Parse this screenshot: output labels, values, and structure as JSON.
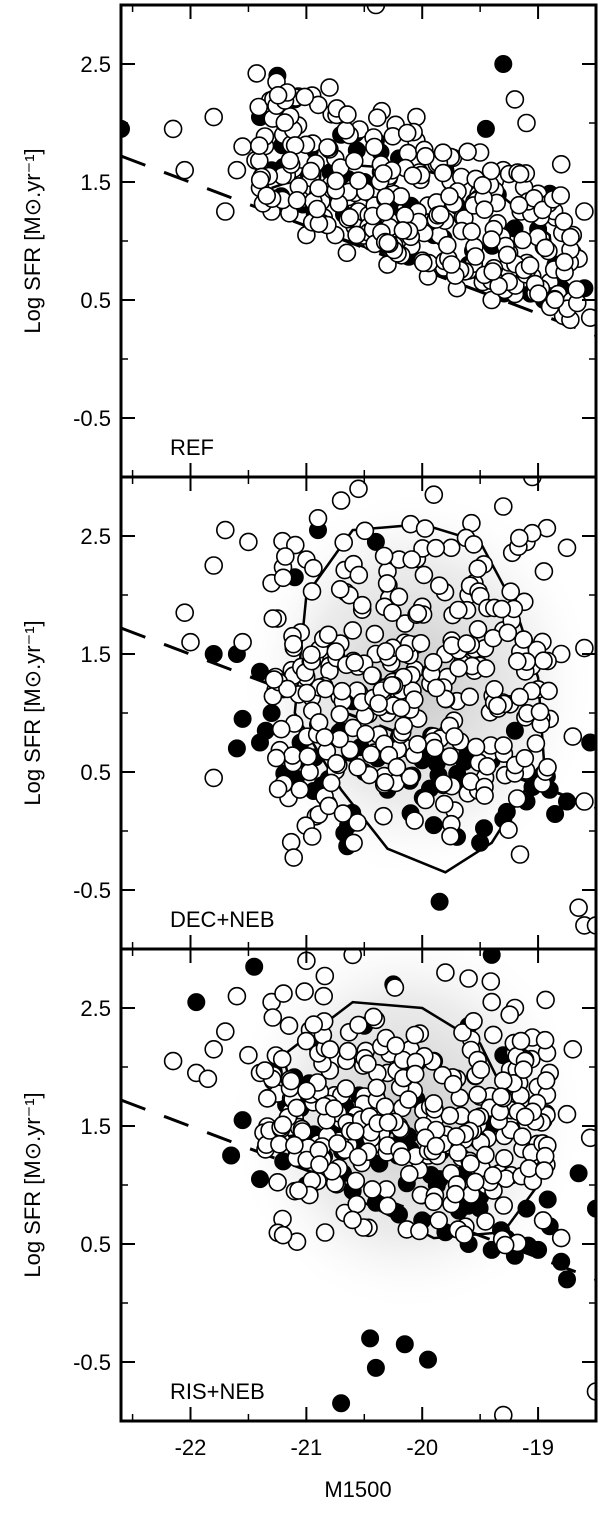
{
  "chart_data": [
    {
      "type": "scatter",
      "panel_label": "REF",
      "ylabel": "Log SFR [M⊙.yr⁻¹]",
      "xlabel": "",
      "xlim": [
        -22.6,
        -18.5
      ],
      "ylim": [
        -1.0,
        3.0
      ],
      "yticks": [
        2.5,
        1.5,
        0.5,
        -0.5
      ],
      "ytick_labels": [
        "2.5",
        "1.5",
        "0.5",
        "-0.5"
      ],
      "xticks": [
        -22,
        -21,
        -20,
        -19
      ],
      "detection_limit_line": {
        "style": "dashed",
        "x": [
          -22.6,
          -18.5
        ],
        "y": [
          1.72,
          0.2
        ]
      },
      "density_map": false,
      "contour": [
        [
          -21.3,
          1.45
        ],
        [
          -20.7,
          1.65
        ],
        [
          -20.0,
          1.6
        ],
        [
          -19.4,
          1.45
        ],
        [
          -18.9,
          1.05
        ],
        [
          -18.85,
          0.55
        ],
        [
          -19.6,
          0.7
        ],
        [
          -20.5,
          0.95
        ],
        [
          -21.2,
          1.2
        ],
        [
          -21.3,
          1.45
        ]
      ],
      "filled_points": [
        [
          -22.6,
          1.95
        ],
        [
          -21.25,
          2.4
        ],
        [
          -21.4,
          2.05
        ],
        [
          -21.1,
          2.2
        ],
        [
          -20.7,
          1.9
        ],
        [
          -20.4,
          1.85
        ],
        [
          -20.2,
          1.7
        ],
        [
          -19.8,
          1.6
        ],
        [
          -19.45,
          1.95
        ],
        [
          -19.3,
          2.5
        ],
        [
          -19.5,
          1.45
        ],
        [
          -19.0,
          1.1
        ],
        [
          -18.9,
          1.4
        ],
        [
          -18.85,
          0.8
        ],
        [
          -18.7,
          0.9
        ],
        [
          -18.6,
          0.6
        ],
        [
          -21.0,
          1.6
        ],
        [
          -20.9,
          1.4
        ],
        [
          -21.15,
          1.3
        ],
        [
          -20.5,
          1.5
        ],
        [
          -20.1,
          1.25
        ],
        [
          -19.7,
          1.3
        ],
        [
          -19.35,
          1.0
        ],
        [
          -19.1,
          0.75
        ],
        [
          -18.8,
          0.6
        ],
        [
          -20.6,
          1.15
        ],
        [
          -20.3,
          1.0
        ],
        [
          -21.3,
          1.6
        ],
        [
          -19.9,
          1.05
        ],
        [
          -19.6,
          0.8
        ],
        [
          -18.95,
          0.5
        ]
      ],
      "open_points": [
        [
          -22.15,
          1.95
        ],
        [
          -22.05,
          1.6
        ],
        [
          -21.8,
          2.05
        ],
        [
          -21.55,
          1.8
        ],
        [
          -21.4,
          1.45
        ],
        [
          -21.1,
          1.75
        ],
        [
          -21.3,
          1.25
        ],
        [
          -21.05,
          1.35
        ],
        [
          -20.95,
          1.55
        ],
        [
          -20.85,
          1.2
        ],
        [
          -20.75,
          1.7
        ],
        [
          -20.6,
          1.45
        ],
        [
          -20.55,
          1.25
        ],
        [
          -20.45,
          1.1
        ],
        [
          -20.35,
          1.6
        ],
        [
          -20.25,
          1.4
        ],
        [
          -20.15,
          1.15
        ],
        [
          -20.05,
          1.85
        ],
        [
          -19.95,
          1.3
        ],
        [
          -19.85,
          1.05
        ],
        [
          -19.75,
          1.5
        ],
        [
          -19.65,
          1.2
        ],
        [
          -19.55,
          0.95
        ],
        [
          -19.45,
          1.35
        ],
        [
          -19.35,
          1.15
        ],
        [
          -19.25,
          0.9
        ],
        [
          -19.15,
          1.25
        ],
        [
          -19.05,
          0.7
        ],
        [
          -18.95,
          0.95
        ],
        [
          -18.85,
          1.2
        ],
        [
          -18.75,
          0.5
        ],
        [
          -18.65,
          0.85
        ],
        [
          -18.55,
          0.35
        ],
        [
          -18.6,
          1.25
        ],
        [
          -18.8,
          1.65
        ],
        [
          -19.1,
          2.0
        ],
        [
          -19.2,
          2.2
        ],
        [
          -20.05,
          2.05
        ],
        [
          -20.35,
          2.1
        ],
        [
          -20.8,
          2.3
        ],
        [
          -20.4,
          3.0
        ],
        [
          -21.6,
          1.6
        ],
        [
          -21.7,
          1.25
        ],
        [
          -21.2,
          1.9
        ],
        [
          -20.65,
          0.9
        ],
        [
          -20.3,
          0.8
        ],
        [
          -19.95,
          0.7
        ],
        [
          -19.7,
          0.6
        ],
        [
          -19.4,
          0.5
        ],
        [
          -20.15,
          0.95
        ],
        [
          -20.75,
          1.05
        ],
        [
          -21.0,
          1.05
        ],
        [
          -19.85,
          1.7
        ],
        [
          -19.5,
          1.75
        ],
        [
          -19.3,
          1.6
        ],
        [
          -19.0,
          1.4
        ],
        [
          -18.7,
          1.05
        ],
        [
          -18.9,
          0.65
        ],
        [
          -19.2,
          0.55
        ],
        [
          -19.6,
          0.75
        ]
      ],
      "open_scatter_cloud": {
        "n": 260,
        "seed": 7,
        "xrange": [
          -21.45,
          -18.65
        ],
        "band": "above_limit",
        "span": 1.1
      },
      "filled_scatter_cloud": {
        "n": 40,
        "seed": 11,
        "xrange": [
          -21.3,
          -18.7
        ],
        "band": "above_limit",
        "span": 0.9
      }
    },
    {
      "type": "scatter",
      "panel_label": "DEC+NEB",
      "ylabel": "Log SFR [M⊙.yr⁻¹]",
      "xlabel": "",
      "xlim": [
        -22.6,
        -18.5
      ],
      "ylim": [
        -1.0,
        3.0
      ],
      "yticks": [
        2.5,
        1.5,
        0.5,
        -0.5
      ],
      "ytick_labels": [
        "2.5",
        "1.5",
        "0.5",
        "-0.5"
      ],
      "xticks": [
        -22,
        -21,
        -20,
        -19
      ],
      "detection_limit_line": {
        "style": "dashed",
        "x": [
          -22.6,
          -18.5
        ],
        "y": [
          1.72,
          0.2
        ]
      },
      "density_map": true,
      "contour": [
        [
          -21.0,
          2.0
        ],
        [
          -20.6,
          2.55
        ],
        [
          -20.0,
          2.6
        ],
        [
          -19.5,
          2.45
        ],
        [
          -19.2,
          1.9
        ],
        [
          -19.0,
          1.3
        ],
        [
          -18.95,
          0.6
        ],
        [
          -19.4,
          -0.1
        ],
        [
          -19.8,
          -0.35
        ],
        [
          -20.3,
          -0.15
        ],
        [
          -20.7,
          0.35
        ],
        [
          -21.1,
          1.0
        ],
        [
          -21.0,
          2.0
        ]
      ],
      "filled_points": [
        [
          -21.6,
          1.5
        ],
        [
          -21.4,
          1.35
        ],
        [
          -21.2,
          1.2
        ],
        [
          -21.55,
          0.95
        ],
        [
          -21.35,
          0.85
        ],
        [
          -21.05,
          0.75
        ],
        [
          -21.6,
          0.7
        ],
        [
          -21.4,
          0.75
        ],
        [
          -21.0,
          0.6
        ],
        [
          -20.9,
          0.9
        ],
        [
          -20.7,
          0.85
        ],
        [
          -20.5,
          0.5
        ],
        [
          -20.3,
          0.35
        ],
        [
          -20.1,
          0.15
        ],
        [
          -19.9,
          0.05
        ],
        [
          -19.7,
          -0.05
        ],
        [
          -19.5,
          -0.1
        ],
        [
          -19.3,
          0.1
        ],
        [
          -19.1,
          0.25
        ],
        [
          -18.9,
          0.35
        ],
        [
          -18.75,
          0.25
        ],
        [
          -18.55,
          0.75
        ],
        [
          -19.85,
          -0.6
        ],
        [
          -20.4,
          2.45
        ],
        [
          -20.9,
          2.55
        ],
        [
          -21.1,
          2.15
        ],
        [
          -19.6,
          0.4
        ],
        [
          -19.4,
          0.6
        ],
        [
          -20.0,
          0.6
        ],
        [
          -20.6,
          1.1
        ],
        [
          -20.2,
          0.8
        ],
        [
          -21.3,
          1.0
        ],
        [
          -21.8,
          1.5
        ],
        [
          -19.2,
          0.85
        ],
        [
          -21.1,
          0.45
        ]
      ],
      "open_points": [
        [
          -22.05,
          1.85
        ],
        [
          -22.0,
          1.6
        ],
        [
          -21.8,
          2.25
        ],
        [
          -21.7,
          2.55
        ],
        [
          -21.55,
          1.6
        ],
        [
          -21.5,
          2.45
        ],
        [
          -21.3,
          2.1
        ],
        [
          -21.25,
          1.8
        ],
        [
          -21.0,
          2.3
        ],
        [
          -20.9,
          2.65
        ],
        [
          -20.7,
          2.8
        ],
        [
          -20.55,
          2.9
        ],
        [
          -20.3,
          2.2
        ],
        [
          -20.1,
          2.6
        ],
        [
          -19.9,
          2.85
        ],
        [
          -19.75,
          2.4
        ],
        [
          -19.55,
          2.1
        ],
        [
          -19.3,
          2.75
        ],
        [
          -19.1,
          2.45
        ],
        [
          -18.95,
          2.2
        ],
        [
          -18.75,
          2.4
        ],
        [
          -18.6,
          1.55
        ],
        [
          -18.8,
          1.5
        ],
        [
          -19.0,
          1.2
        ],
        [
          -18.9,
          0.95
        ],
        [
          -18.7,
          0.8
        ],
        [
          -18.6,
          0.25
        ],
        [
          -18.65,
          -0.65
        ],
        [
          -18.6,
          -0.8
        ],
        [
          -18.5,
          -0.8
        ],
        [
          -19.05,
          3.0
        ],
        [
          -21.8,
          0.45
        ],
        [
          -20.1,
          1.2
        ],
        [
          -20.4,
          1.5
        ],
        [
          -20.6,
          1.7
        ],
        [
          -20.8,
          1.4
        ],
        [
          -20.3,
          1.0
        ],
        [
          -19.9,
          0.8
        ],
        [
          -19.7,
          1.1
        ],
        [
          -19.5,
          1.4
        ],
        [
          -19.3,
          1.7
        ],
        [
          -19.6,
          2.0
        ],
        [
          -20.0,
          1.9
        ],
        [
          -20.2,
          2.3
        ],
        [
          -19.8,
          1.5
        ]
      ],
      "open_scatter_cloud": {
        "n": 300,
        "seed": 23,
        "xrange": [
          -21.3,
          -18.9
        ],
        "band": "cloud",
        "ycenter": 1.2,
        "yspan": 1.4
      },
      "filled_scatter_cloud": {
        "n": 35,
        "seed": 31,
        "xrange": [
          -21.2,
          -18.8
        ],
        "band": "lower_cloud",
        "ycenter": 0.4,
        "yspan": 0.5
      }
    },
    {
      "type": "scatter",
      "panel_label": "RIS+NEB",
      "ylabel": "Log SFR [M⊙.yr⁻¹]",
      "xlabel": "M1500",
      "xlim": [
        -22.6,
        -18.5
      ],
      "ylim": [
        -1.0,
        3.0
      ],
      "yticks": [
        2.5,
        1.5,
        0.5,
        -0.5
      ],
      "ytick_labels": [
        "2.5",
        "1.5",
        "0.5",
        "-0.5"
      ],
      "xticks": [
        -22,
        -21,
        -20,
        -19
      ],
      "xtick_labels": [
        "-22",
        "-21",
        "-20",
        "-19"
      ],
      "detection_limit_line": {
        "style": "dashed",
        "x": [
          -22.6,
          -18.5
        ],
        "y": [
          1.72,
          0.2
        ]
      },
      "density_map": true,
      "contour": [
        [
          -21.2,
          2.1
        ],
        [
          -20.6,
          2.55
        ],
        [
          -20.0,
          2.5
        ],
        [
          -19.5,
          2.2
        ],
        [
          -19.2,
          1.6
        ],
        [
          -19.0,
          1.0
        ],
        [
          -19.3,
          0.6
        ],
        [
          -19.9,
          0.55
        ],
        [
          -20.5,
          0.85
        ],
        [
          -21.0,
          1.3
        ],
        [
          -21.2,
          2.1
        ]
      ],
      "filled_points": [
        [
          -21.95,
          2.55
        ],
        [
          -21.45,
          2.85
        ],
        [
          -21.55,
          1.55
        ],
        [
          -21.65,
          1.25
        ],
        [
          -21.4,
          1.05
        ],
        [
          -21.2,
          1.2
        ],
        [
          -21.0,
          1.0
        ],
        [
          -20.8,
          1.1
        ],
        [
          -20.6,
          0.95
        ],
        [
          -20.4,
          0.85
        ],
        [
          -20.2,
          0.75
        ],
        [
          -20.0,
          0.7
        ],
        [
          -19.8,
          0.6
        ],
        [
          -19.6,
          0.5
        ],
        [
          -19.4,
          0.45
        ],
        [
          -19.2,
          0.4
        ],
        [
          -19.0,
          0.45
        ],
        [
          -18.8,
          0.35
        ],
        [
          -18.75,
          0.2
        ],
        [
          -18.5,
          0.8
        ],
        [
          -20.45,
          -0.3
        ],
        [
          -20.15,
          -0.35
        ],
        [
          -20.4,
          -0.55
        ],
        [
          -19.95,
          -0.48
        ],
        [
          -20.7,
          -0.85
        ],
        [
          -20.9,
          2.15
        ],
        [
          -20.5,
          2.35
        ],
        [
          -20.25,
          2.7
        ],
        [
          -19.6,
          2.35
        ],
        [
          -19.3,
          2.1
        ],
        [
          -21.05,
          1.65
        ],
        [
          -20.75,
          1.45
        ],
        [
          -20.1,
          1.3
        ],
        [
          -19.85,
          1.05
        ],
        [
          -19.5,
          0.9
        ],
        [
          -19.1,
          0.8
        ],
        [
          -18.9,
          0.65
        ],
        [
          -18.65,
          1.1
        ],
        [
          -19.4,
          2.95
        ]
      ],
      "open_points": [
        [
          -22.15,
          2.05
        ],
        [
          -21.95,
          1.95
        ],
        [
          -21.85,
          1.9
        ],
        [
          -21.8,
          2.15
        ],
        [
          -21.7,
          2.3
        ],
        [
          -21.6,
          2.6
        ],
        [
          -21.5,
          2.1
        ],
        [
          -21.4,
          1.95
        ],
        [
          -21.3,
          2.55
        ],
        [
          -21.15,
          2.35
        ],
        [
          -21.0,
          2.9
        ],
        [
          -20.85,
          2.6
        ],
        [
          -20.6,
          2.95
        ],
        [
          -20.4,
          2.4
        ],
        [
          -19.8,
          2.8
        ],
        [
          -19.6,
          2.75
        ],
        [
          -19.4,
          2.55
        ],
        [
          -19.2,
          2.5
        ],
        [
          -19.05,
          2.25
        ],
        [
          -18.9,
          1.95
        ],
        [
          -18.75,
          1.6
        ],
        [
          -18.7,
          2.15
        ],
        [
          -18.55,
          1.4
        ],
        [
          -18.5,
          -0.75
        ],
        [
          -19.3,
          -0.95
        ],
        [
          -18.8,
          0.55
        ],
        [
          -19.0,
          1.25
        ],
        [
          -19.25,
          1.55
        ],
        [
          -19.5,
          1.75
        ],
        [
          -19.7,
          1.9
        ],
        [
          -19.9,
          2.05
        ],
        [
          -20.1,
          2.15
        ],
        [
          -20.3,
          1.95
        ],
        [
          -20.5,
          1.75
        ],
        [
          -20.7,
          1.55
        ],
        [
          -20.9,
          1.35
        ],
        [
          -21.1,
          1.5
        ],
        [
          -20.2,
          1.5
        ],
        [
          -19.95,
          1.25
        ],
        [
          -19.75,
          1.1
        ],
        [
          -19.45,
          1.0
        ]
      ],
      "open_scatter_cloud": {
        "n": 300,
        "seed": 41,
        "xrange": [
          -21.4,
          -18.9
        ],
        "band": "cloud",
        "ycenter": 1.55,
        "yspan": 1.0
      },
      "filled_scatter_cloud": {
        "n": 45,
        "seed": 53,
        "xrange": [
          -21.3,
          -18.9
        ],
        "band": "above_limit",
        "span": 1.0
      }
    }
  ]
}
